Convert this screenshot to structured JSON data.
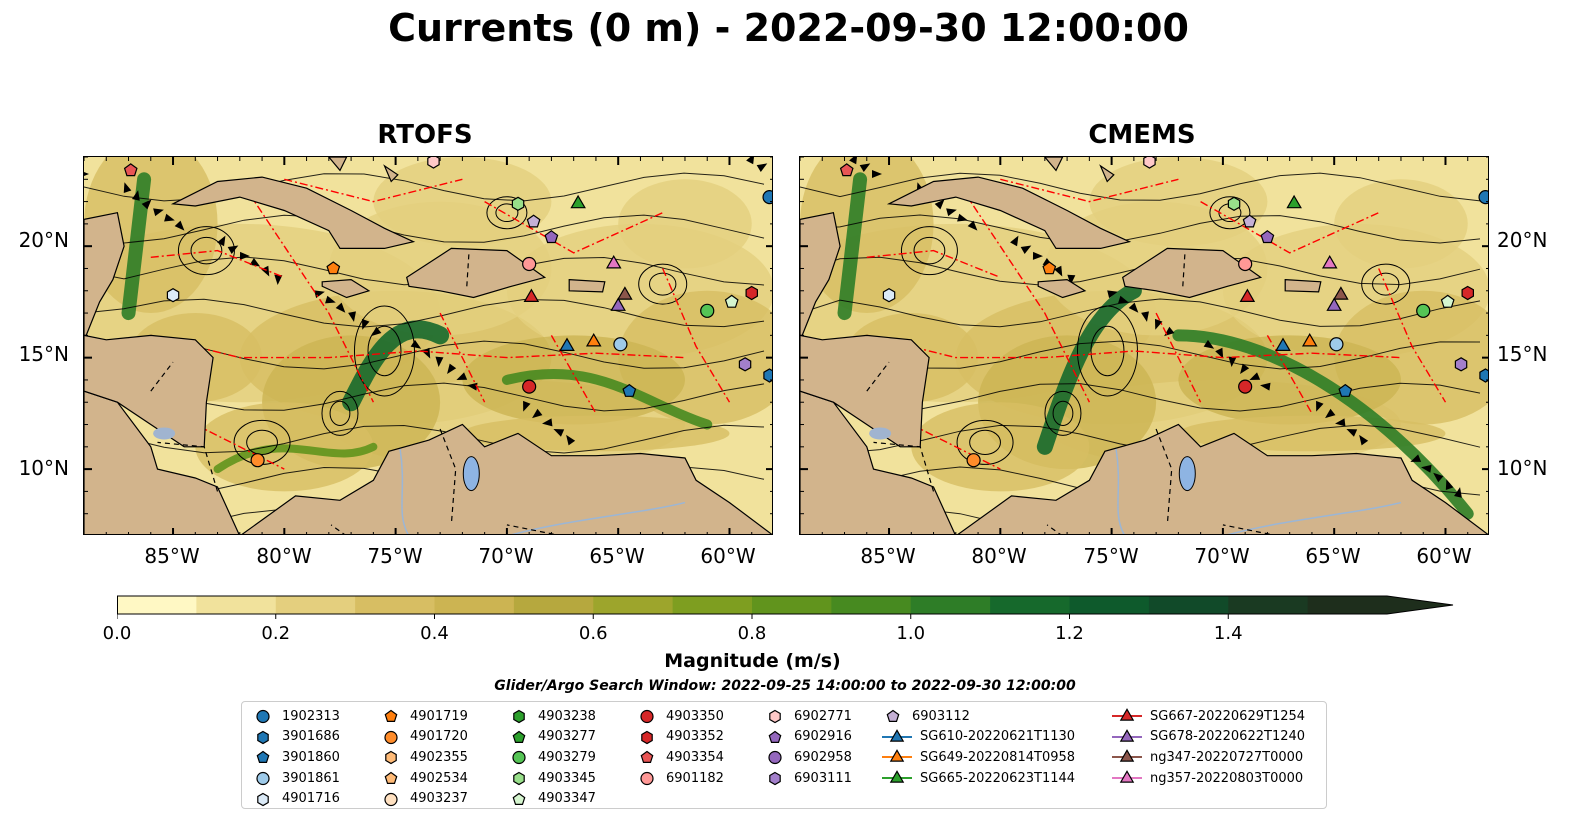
{
  "title": "Currents (0 m) - 2022-09-30 12:00:00",
  "panels": [
    {
      "title": "RTOFS"
    },
    {
      "title": "CMEMS"
    }
  ],
  "x_ticks": [
    "85°W",
    "80°W",
    "75°W",
    "70°W",
    "65°W",
    "60°W"
  ],
  "y_ticks": [
    "20°N",
    "15°N",
    "10°N"
  ],
  "colorbar": {
    "label": "Magnitude (m/s)",
    "ticks": [
      "0.0",
      "0.2",
      "0.4",
      "0.6",
      "0.8",
      "1.0",
      "1.2",
      "1.4"
    ],
    "colors": [
      "#fff8c4",
      "#f1e29c",
      "#e4cf7e",
      "#d7be63",
      "#ccb452",
      "#b6a83e",
      "#9da52c",
      "#7e9e20",
      "#61941d",
      "#478a20",
      "#2e7d27",
      "#16692c",
      "#0e5a2c",
      "#114a29",
      "#1a3a22",
      "#1e2e1c"
    ],
    "range": [
      0,
      1.6
    ]
  },
  "search_window": "Glider/Argo Search Window: 2022-09-25 14:00:00 to 2022-09-30 12:00:00",
  "map_extent": {
    "lon": [
      -89,
      -58
    ],
    "lat": [
      7,
      24
    ]
  },
  "legend": [
    [
      {
        "label": "1902313",
        "marker": "circle",
        "color": "#1f77b4"
      },
      {
        "label": "3901686",
        "marker": "hexagon",
        "color": "#1f77b4"
      },
      {
        "label": "3901860",
        "marker": "pentagon",
        "color": "#1f77b4"
      },
      {
        "label": "3901861",
        "marker": "circle",
        "color": "#9ecae9"
      },
      {
        "label": "4901716",
        "marker": "hexagon",
        "color": "#dbeaf7"
      }
    ],
    [
      {
        "label": "4901719",
        "marker": "pentagon",
        "color": "#ff7f0e"
      },
      {
        "label": "4901720",
        "marker": "circle",
        "color": "#ff8c2a"
      },
      {
        "label": "4902355",
        "marker": "hexagon",
        "color": "#ffbb78"
      },
      {
        "label": "4902534",
        "marker": "pentagon",
        "color": "#ffbb78"
      },
      {
        "label": "4903237",
        "marker": "circle",
        "color": "#ffe1c1"
      }
    ],
    [
      {
        "label": "4903238",
        "marker": "hexagon",
        "color": "#2ca02c"
      },
      {
        "label": "4903277",
        "marker": "pentagon",
        "color": "#2ca02c"
      },
      {
        "label": "4903279",
        "marker": "circle",
        "color": "#55c455"
      },
      {
        "label": "4903345",
        "marker": "hexagon",
        "color": "#98df8a"
      },
      {
        "label": "4903347",
        "marker": "pentagon",
        "color": "#d5f5cf"
      }
    ],
    [
      {
        "label": "4903350",
        "marker": "circle",
        "color": "#d62728"
      },
      {
        "label": "4903352",
        "marker": "hexagon",
        "color": "#d62728"
      },
      {
        "label": "4903354",
        "marker": "pentagon",
        "color": "#e85555"
      },
      {
        "label": "6901182",
        "marker": "circle",
        "color": "#ff9896"
      }
    ],
    [
      {
        "label": "6902771",
        "marker": "hexagon",
        "color": "#ffc9c8"
      },
      {
        "label": "6902916",
        "marker": "pentagon",
        "color": "#9467bd"
      },
      {
        "label": "6902958",
        "marker": "circle",
        "color": "#9467bd"
      },
      {
        "label": "6903111",
        "marker": "hexagon",
        "color": "#a37fcb"
      }
    ],
    [
      {
        "label": "6903112",
        "marker": "pentagon",
        "color": "#c5b0d5"
      },
      {
        "label": "SG610-20220621T1130",
        "marker": "triangle-line",
        "color": "#1f77b4"
      },
      {
        "label": "SG649-20220814T0958",
        "marker": "triangle-line",
        "color": "#ff7f0e"
      },
      {
        "label": "SG665-20220623T1144",
        "marker": "triangle-line",
        "color": "#2ca02c"
      }
    ],
    [
      {
        "label": "SG667-20220629T1254",
        "marker": "triangle-line",
        "color": "#d62728"
      },
      {
        "label": "SG678-20220622T1240",
        "marker": "triangle-line",
        "color": "#9467bd"
      },
      {
        "label": "ng347-20220727T0000",
        "marker": "triangle-line",
        "color": "#8c564b"
      },
      {
        "label": "ng357-20220803T0000",
        "marker": "triangle-line",
        "color": "#e377c2"
      }
    ]
  ],
  "observations": [
    {
      "label": "1902313",
      "lon": -58.2,
      "lat": 22.2
    },
    {
      "label": "3901686",
      "lon": -58.2,
      "lat": 14.2
    },
    {
      "label": "3901860",
      "lon": -64.5,
      "lat": 13.5
    },
    {
      "label": "3901861",
      "lon": -64.9,
      "lat": 15.6
    },
    {
      "label": "4901716",
      "lon": -85.0,
      "lat": 17.8
    },
    {
      "label": "4901719",
      "lon": -77.8,
      "lat": 19.0
    },
    {
      "label": "4901720",
      "lon": -81.2,
      "lat": 10.4
    },
    {
      "label": "4903345",
      "lon": -69.5,
      "lat": 21.9
    },
    {
      "label": "4903347",
      "lon": -59.9,
      "lat": 17.5
    },
    {
      "label": "4903350",
      "lon": -69.0,
      "lat": 13.7
    },
    {
      "label": "4903352",
      "lon": -59.0,
      "lat": 17.9
    },
    {
      "label": "4903354",
      "lon": -86.9,
      "lat": 23.4
    },
    {
      "label": "6901182",
      "lon": -69.0,
      "lat": 19.2
    },
    {
      "label": "6902771",
      "lon": -73.3,
      "lat": 23.8
    },
    {
      "label": "6902916",
      "lon": -68.0,
      "lat": 20.4
    },
    {
      "label": "6903111",
      "lon": -59.3,
      "lat": 14.7
    },
    {
      "label": "6903112",
      "lon": -68.8,
      "lat": 21.1
    },
    {
      "label": "4903279",
      "lon": -61.0,
      "lat": 17.1
    },
    {
      "label": "SG610-20220621T1130",
      "lon": -67.3,
      "lat": 15.5
    },
    {
      "label": "SG649-20220814T0958",
      "lon": -66.1,
      "lat": 15.7
    },
    {
      "label": "SG665-20220623T1144",
      "lon": -66.8,
      "lat": 21.9
    },
    {
      "label": "SG667-20220629T1254",
      "lon": -68.9,
      "lat": 17.7
    },
    {
      "label": "SG678-20220622T1240",
      "lon": -65.0,
      "lat": 17.3
    },
    {
      "label": "ng347-20220727T0000",
      "lon": -64.7,
      "lat": 17.8
    },
    {
      "label": "ng357-20220803T0000",
      "lon": -65.2,
      "lat": 19.2
    }
  ]
}
